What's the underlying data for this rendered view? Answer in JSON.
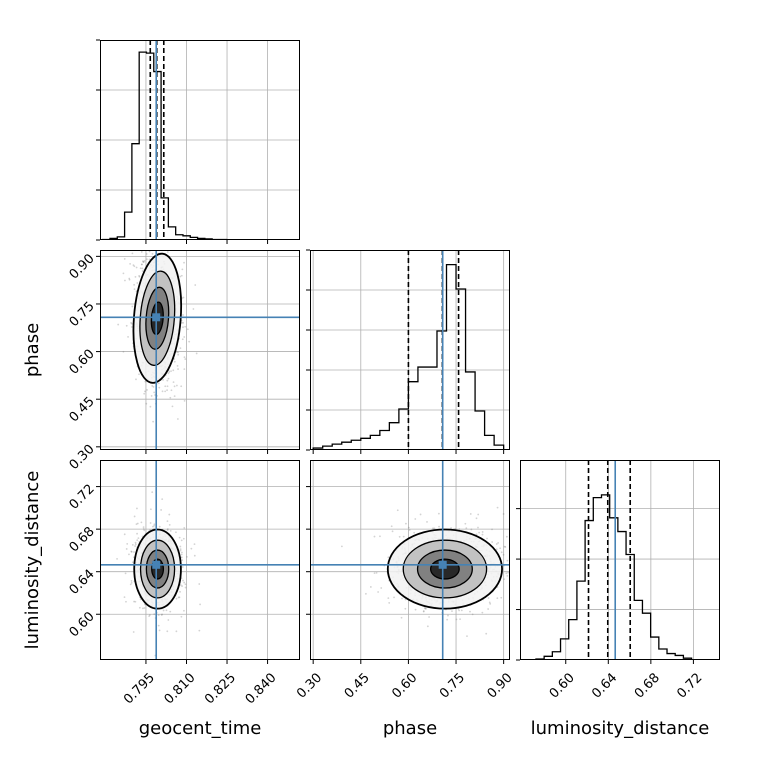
{
  "chart_data": {
    "type": "corner",
    "parameters": [
      "geocent_time",
      "phase",
      "luminosity_distance"
    ],
    "truths": {
      "geocent_time": 0.7988,
      "phase": 0.708,
      "luminosity_distance": 0.6465
    },
    "axes": {
      "geocent_time": {
        "range": [
          0.778,
          0.852
        ],
        "ticks": [
          0.795,
          0.81,
          0.825,
          0.84
        ],
        "tick_labels": [
          "0.795",
          "0.810",
          "0.825",
          "0.840"
        ]
      },
      "phase": {
        "range": [
          0.29,
          0.92
        ],
        "ticks": [
          0.3,
          0.45,
          0.6,
          0.75,
          0.9
        ],
        "tick_labels": [
          "0.30",
          "0.45",
          "0.60",
          "0.75",
          "0.90"
        ]
      },
      "luminosity_distance": {
        "range": [
          0.557,
          0.745
        ],
        "ticks": [
          0.6,
          0.64,
          0.68,
          0.72
        ],
        "tick_labels": [
          "0.60",
          "0.64",
          "0.68",
          "0.72"
        ]
      }
    },
    "marginals": {
      "geocent_time": {
        "edges": [
          0.779,
          0.7817,
          0.7844,
          0.7871,
          0.7898,
          0.7925,
          0.7952,
          0.7979,
          0.8006,
          0.8033,
          0.806,
          0.8087,
          0.8114,
          0.8141,
          0.8168,
          0.8195,
          0.8222,
          0.8249
        ],
        "counts": [
          1,
          3,
          6,
          53,
          183,
          357,
          355,
          320,
          80,
          25,
          10,
          8,
          5,
          3,
          2,
          1,
          1
        ],
        "quantiles": [
          0.7966,
          0.799,
          0.8016
        ],
        "ylim": [
          0,
          380
        ],
        "tick_values": [
          0,
          95,
          190,
          285,
          380
        ]
      },
      "phase": {
        "edges": [
          0.3,
          0.33,
          0.36,
          0.39,
          0.42,
          0.45,
          0.48,
          0.51,
          0.54,
          0.57,
          0.6,
          0.63,
          0.66,
          0.69,
          0.72,
          0.75,
          0.78,
          0.81,
          0.84,
          0.87,
          0.9
        ],
        "counts": [
          2,
          4,
          6,
          8,
          10,
          12,
          15,
          20,
          28,
          42,
          70,
          85,
          85,
          122,
          190,
          165,
          80,
          40,
          15,
          5
        ],
        "quantiles": [
          0.6,
          0.707,
          0.758
        ],
        "ylim": [
          0,
          205
        ],
        "tick_values": [
          0,
          41,
          82,
          123,
          164,
          205
        ]
      },
      "luminosity_distance": {
        "edges": [
          0.572,
          0.5797,
          0.5874,
          0.5951,
          0.6028,
          0.6105,
          0.6182,
          0.6259,
          0.6336,
          0.6413,
          0.649,
          0.6567,
          0.6644,
          0.6721,
          0.6798,
          0.6875,
          0.6952,
          0.7029,
          0.7106,
          0.7183
        ],
        "counts": [
          1,
          4,
          9,
          23,
          44,
          86,
          152,
          177,
          180,
          155,
          140,
          115,
          65,
          51,
          25,
          12,
          7,
          5,
          2
        ],
        "quantiles": [
          0.6214,
          0.6395,
          0.6606
        ],
        "ylim": [
          0,
          218
        ],
        "tick_values": [
          0,
          55,
          110,
          165
        ]
      }
    },
    "pairs": [
      {
        "x": "geocent_time",
        "y": "phase",
        "center": [
          0.7992,
          0.705
        ],
        "sigma": [
          0.0036,
          0.085
        ],
        "corr": -0.15,
        "contour_scales": [
          0.6,
          1.15,
          1.75,
          2.4
        ]
      },
      {
        "x": "geocent_time",
        "y": "luminosity_distance",
        "center": [
          0.7993,
          0.6425
        ],
        "sigma": [
          0.0036,
          0.0155
        ],
        "corr": 0.0,
        "contour_scales": [
          0.6,
          1.15,
          1.75,
          2.4
        ]
      },
      {
        "x": "phase",
        "y": "luminosity_distance",
        "center": [
          0.715,
          0.6425
        ],
        "sigma": [
          0.075,
          0.0155
        ],
        "corr": 0.0,
        "contour_scales": [
          0.6,
          1.15,
          1.75,
          2.4
        ]
      }
    ],
    "scatter_points_per_panel": 1400,
    "colors": {
      "histogram": "#000000",
      "truth": "#4682b4",
      "grid": "#b0b0b0",
      "scatter": "#808080"
    },
    "grid": true
  }
}
